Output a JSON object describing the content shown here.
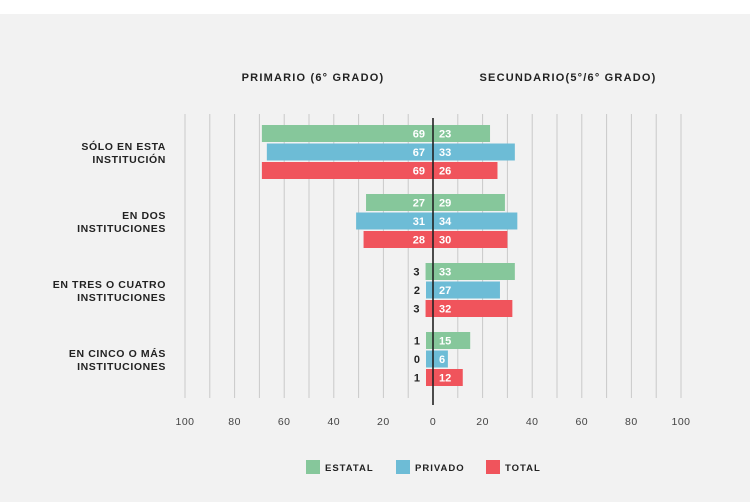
{
  "chart_data": {
    "type": "bar",
    "orientation": "horizontal",
    "layout": "back-to-back",
    "left_title": "PRIMARIO (6° GRADO)",
    "right_title": "SECUNDARIO(5°/6° GRADO)",
    "categories": [
      "SÓLO EN ESTA INSTITUCIÓN",
      "EN DOS INSTITUCIONES",
      "EN TRES O CUATRO INSTITUCIONES",
      "EN CINCO O MÁS INSTITUCIONES"
    ],
    "category_lines": [
      [
        "SÓLO EN ESTA",
        "INSTITUCIÓN"
      ],
      [
        "EN DOS",
        "INSTITUCIONES"
      ],
      [
        "EN TRES O CUATRO",
        "INSTITUCIONES"
      ],
      [
        "EN CINCO O MÁS",
        "INSTITUCIONES"
      ]
    ],
    "series": [
      {
        "name": "ESTATAL",
        "color": "#86c79b",
        "primario": [
          69,
          27,
          3,
          1
        ],
        "secundario": [
          23,
          29,
          33,
          15
        ]
      },
      {
        "name": "PRIVADO",
        "color": "#6dbcd6",
        "primario": [
          67,
          31,
          2,
          0
        ],
        "secundario": [
          33,
          34,
          27,
          6
        ]
      },
      {
        "name": "TOTAL",
        "color": "#f0545c",
        "primario": [
          69,
          28,
          3,
          1
        ],
        "secundario": [
          26,
          30,
          32,
          12
        ]
      }
    ],
    "xlim": [
      -100,
      100
    ],
    "x_ticks": [
      100,
      80,
      60,
      40,
      20,
      0,
      20,
      40,
      60,
      80,
      100
    ],
    "grid": true,
    "legend_position": "bottom"
  }
}
